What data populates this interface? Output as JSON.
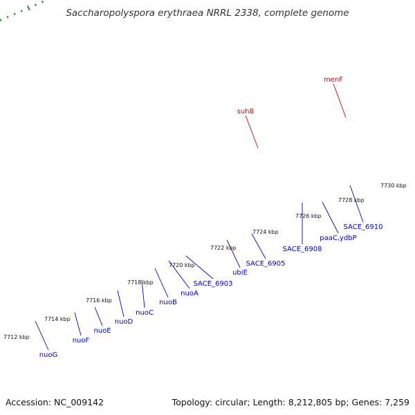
{
  "title": "Saccharopolyspora erythraea NRRL 2338, complete genome",
  "footer": {
    "accession": "Accession: NC_009142",
    "summary": "Topology: circular; Length: 8,212,805 bp; Genes: 7,259"
  },
  "colors": {
    "blue": "#1a1ae6",
    "cyan": "#26d9d9",
    "red": "#ff0000",
    "navy": "#00008b",
    "olive": "#6b8e23",
    "steel": "#4682b4",
    "gray": "#666666",
    "label_blue": "#0000cc",
    "label_red": "#cc0000",
    "tick_green": "#1f8a1f"
  },
  "scale_ticks": [
    "7712 kbp",
    "7714 kbp",
    "7716 kbp",
    "7718 kbp",
    "7720 kbp",
    "7722 kbp",
    "7724 kbp",
    "7726 kbp",
    "7728 kbp",
    "7730 kbp"
  ],
  "gene_labels": [
    {
      "name": "nuoG",
      "color": "blue"
    },
    {
      "name": "nuoF",
      "color": "blue"
    },
    {
      "name": "nuoE",
      "color": "blue"
    },
    {
      "name": "nuoD",
      "color": "blue"
    },
    {
      "name": "nuoC",
      "color": "blue"
    },
    {
      "name": "nuoB",
      "color": "blue"
    },
    {
      "name": "nuoA",
      "color": "blue"
    },
    {
      "name": "SACE_6903",
      "color": "blue"
    },
    {
      "name": "ubiE",
      "color": "blue"
    },
    {
      "name": "SACE_6905",
      "color": "blue"
    },
    {
      "name": "SACE_6908",
      "color": "blue"
    },
    {
      "name": "paaC,ydbP",
      "color": "blue"
    },
    {
      "name": "SACE_6910",
      "color": "blue"
    },
    {
      "name": "suhB",
      "color": "red"
    },
    {
      "name": "menF",
      "color": "red"
    }
  ]
}
